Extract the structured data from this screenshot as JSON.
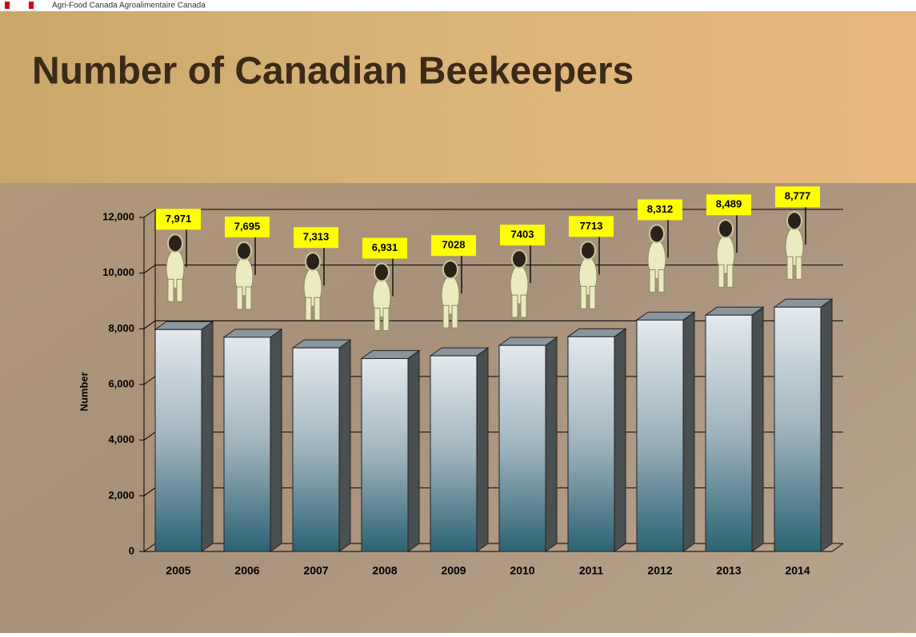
{
  "header": {
    "text": "Agri-Food Canada   Agroalimentaire Canada"
  },
  "chart_data": {
    "type": "bar",
    "title": "Number of Canadian Beekeepers",
    "y_label": "Number",
    "categories": [
      "2005",
      "2006",
      "2007",
      "2008",
      "2009",
      "2010",
      "2011",
      "2012",
      "2013",
      "2014"
    ],
    "values": [
      7971,
      7695,
      7313,
      6931,
      7028,
      7403,
      7713,
      8312,
      8489,
      8777
    ],
    "value_labels": [
      "7,971",
      "7,695",
      "7,313",
      "6,931",
      "7028",
      "7403",
      "7713",
      "8,312",
      "8,489",
      "8,777"
    ],
    "ylim": [
      0,
      12000
    ],
    "yticks": [
      0,
      {
        "value": 2000,
        "label": "2,000"
      },
      {
        "value": 4000,
        "label": "4,000"
      },
      {
        "value": 6000,
        "label": "6,000"
      },
      {
        "value": 8000,
        "label": "8,000"
      },
      {
        "value": 10000,
        "label": "10,000"
      },
      {
        "value": 12000,
        "label": "12,000"
      }
    ],
    "grid": true
  }
}
